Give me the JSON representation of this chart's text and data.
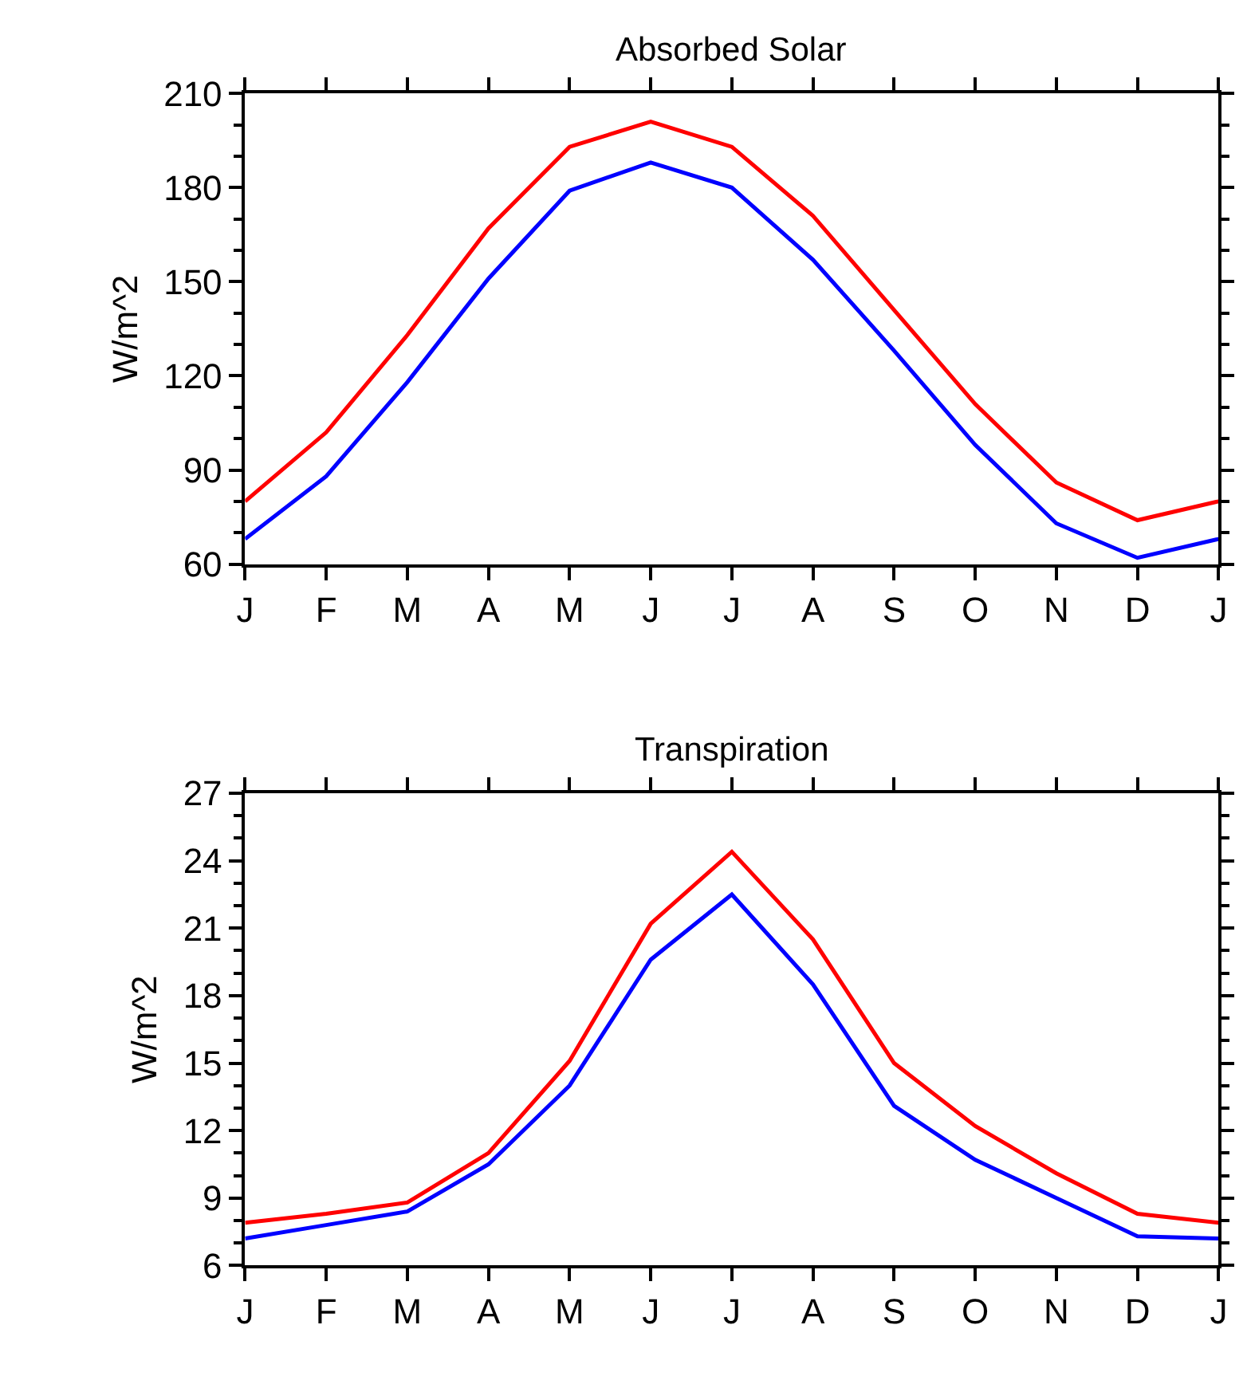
{
  "chart_data": [
    {
      "type": "line",
      "title": "Absorbed Solar",
      "ylabel": "W/m^2",
      "categories": [
        "J",
        "F",
        "M",
        "A",
        "M",
        "J",
        "J",
        "A",
        "S",
        "O",
        "N",
        "D",
        "J"
      ],
      "ylim": [
        60,
        210
      ],
      "yticks": [
        60,
        90,
        120,
        150,
        180,
        210
      ],
      "series": [
        {
          "color": "#ff0000",
          "values": [
            80,
            102,
            133,
            167,
            193,
            201,
            193,
            171,
            141,
            111,
            86,
            74,
            80
          ]
        },
        {
          "color": "#0000ff",
          "values": [
            68,
            88,
            118,
            151,
            179,
            188,
            180,
            157,
            128,
            98,
            73,
            62,
            68
          ]
        }
      ]
    },
    {
      "type": "line",
      "title": "Transpiration",
      "ylabel": "W/m^2",
      "categories": [
        "J",
        "F",
        "M",
        "A",
        "M",
        "J",
        "J",
        "A",
        "S",
        "O",
        "N",
        "D",
        "J"
      ],
      "ylim": [
        6,
        27
      ],
      "yticks": [
        6,
        9,
        12,
        15,
        18,
        21,
        24,
        27
      ],
      "series": [
        {
          "color": "#ff0000",
          "values": [
            7.9,
            8.3,
            8.8,
            11.0,
            15.1,
            21.2,
            24.4,
            20.5,
            15.0,
            12.2,
            10.1,
            8.3,
            7.9
          ]
        },
        {
          "color": "#0000ff",
          "values": [
            7.2,
            7.8,
            8.4,
            10.5,
            14.0,
            19.6,
            22.5,
            18.5,
            13.1,
            10.7,
            9.0,
            7.3,
            7.2
          ]
        }
      ]
    }
  ]
}
